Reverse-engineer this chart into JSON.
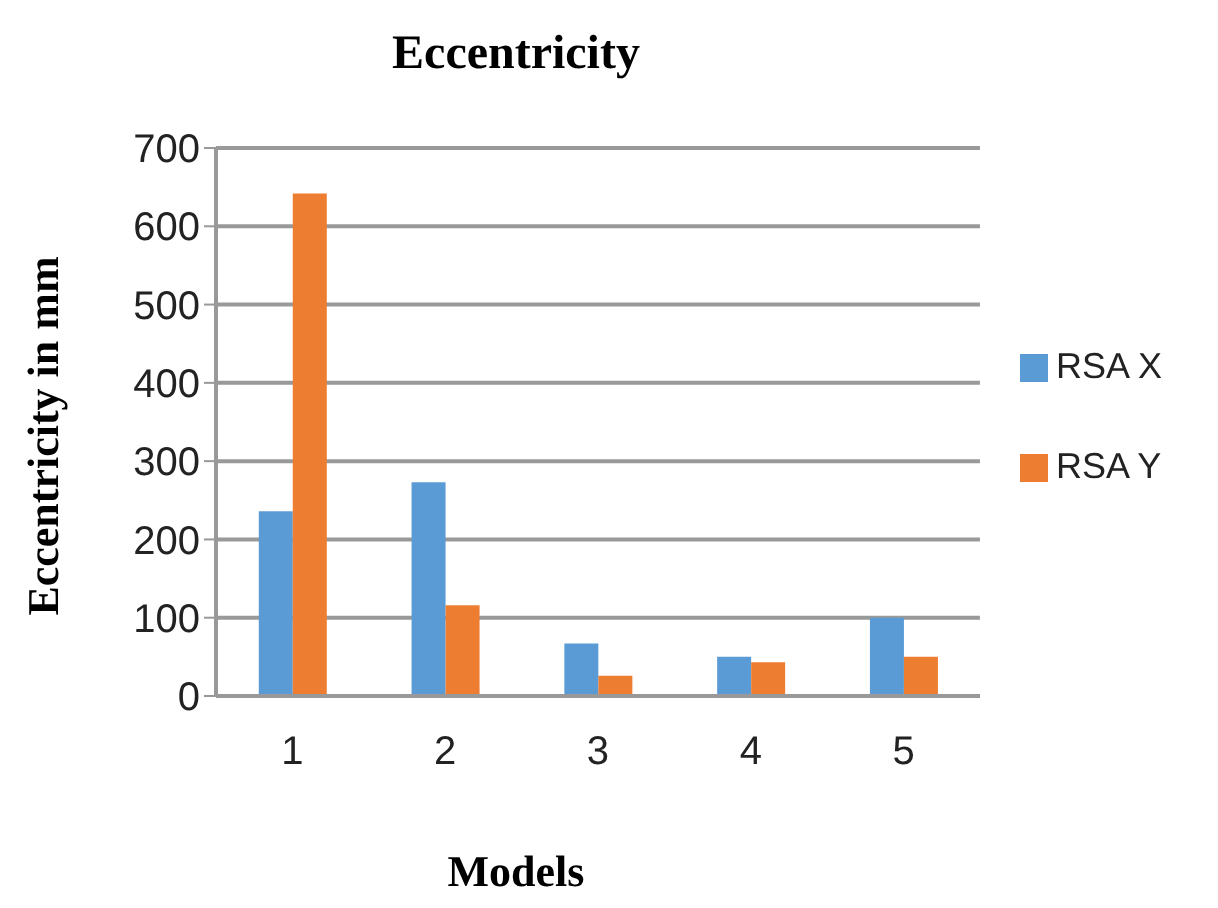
{
  "chart_data": {
    "type": "bar",
    "title": "Eccentricity",
    "xlabel": "Models",
    "ylabel": "Eccentricity in mm",
    "categories": [
      "1",
      "2",
      "3",
      "4",
      "5"
    ],
    "series": [
      {
        "name": "RSA X",
        "color": "#5b9bd5",
        "values": [
          236,
          273,
          67,
          50,
          100
        ]
      },
      {
        "name": "RSA Y",
        "color": "#ed7d31",
        "values": [
          642,
          116,
          26,
          43,
          50
        ]
      }
    ],
    "ylim": [
      0,
      700
    ],
    "yticks": [
      0,
      100,
      200,
      300,
      400,
      500,
      600,
      700
    ],
    "grid": "y",
    "legend": "right"
  }
}
